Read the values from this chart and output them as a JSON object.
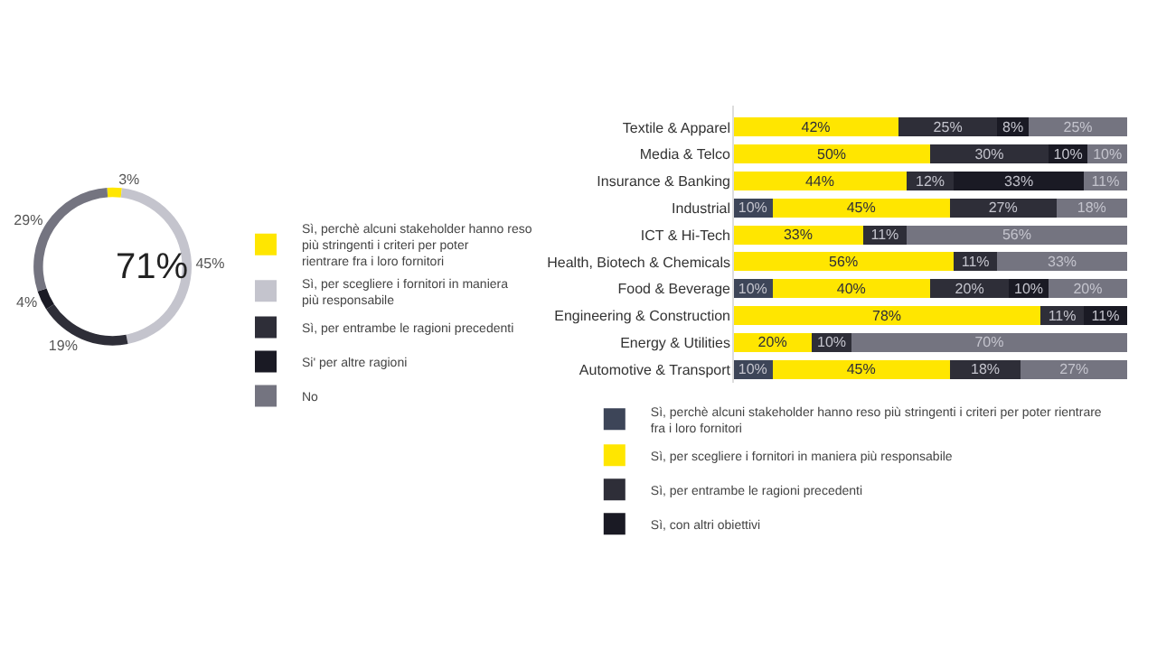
{
  "chart_data": [
    {
      "type": "donut",
      "categories": [
        "Sì, perchè alcuni stakeholder hanno reso più stringenti i criteri per poter rientrare fra i loro fornitori",
        "Sì, per scegliere i fornitori in maniera più responsabile",
        "Sì, per entrambe le ragioni precedenti",
        "Si' per altre ragioni",
        "No"
      ],
      "values": [
        3,
        45,
        19,
        4,
        29
      ],
      "value_labels": [
        "3%",
        "45%",
        "19%",
        "4%",
        "29%"
      ],
      "colors": [
        "#ffe600",
        "#c4c4cd",
        "#2e2e38",
        "#1a1a24",
        "#747480"
      ],
      "annotations": [
        "71%"
      ],
      "legend": "right"
    },
    {
      "type": "bar",
      "orientation": "horizontal",
      "stacked": true,
      "categories": [
        "Textile & Apparel",
        "Media & Telco",
        "Insurance & Banking",
        "Industrial",
        "ICT & Hi-Tech",
        "Health, Biotech & Chemicals",
        "Food & Beverage",
        "Engineering & Construction",
        "Energy & Utilities",
        "Automotive & Transport"
      ],
      "legend": "bottom",
      "tick_labels": "y",
      "series": [
        {
          "name": "Sì, perchè alcuni stakeholder hanno reso più stringenti i criteri per poter rientrare fra i loro fornitori",
          "color": "#3d4558",
          "values": [
            null,
            null,
            null,
            10,
            null,
            null,
            10,
            null,
            null,
            10
          ],
          "value_labels": [
            null,
            null,
            null,
            "10%",
            null,
            null,
            "10%",
            null,
            null,
            "10%"
          ]
        },
        {
          "name": "Sì, per scegliere i fornitori in maniera più responsabile",
          "color": "#ffe600",
          "values": [
            42,
            50,
            44,
            45,
            33,
            56,
            40,
            78,
            20,
            45
          ],
          "value_labels": [
            "42%",
            "50%",
            "44%",
            "45%",
            "33%",
            "56%",
            "40%",
            "78%",
            "20%",
            "45%"
          ]
        },
        {
          "name": "Sì, per entrambe le ragioni precedenti",
          "color": "#2e2e38",
          "values": [
            25,
            30,
            12,
            27,
            11,
            11,
            20,
            11,
            10,
            18
          ],
          "value_labels": [
            "25%",
            "30%",
            "12%",
            "27%",
            "11%",
            "11%",
            "20%",
            "11%",
            "10%",
            "18%"
          ]
        },
        {
          "name": "Sì, con altri obiettivi",
          "color": "#1a1a24",
          "values": [
            8,
            10,
            33,
            null,
            null,
            null,
            10,
            11,
            null,
            null
          ],
          "value_labels": [
            "8%",
            "10%",
            "33%",
            null,
            null,
            null,
            "10%",
            "11%",
            null,
            null
          ]
        },
        {
          "color": "#747480",
          "values": [
            25,
            10,
            11,
            18,
            56,
            33,
            20,
            null,
            70,
            27
          ],
          "value_labels": [
            "25%",
            "10%",
            "11%",
            "18%",
            "56%",
            "33%",
            "20%",
            null,
            "70%",
            "27%"
          ]
        }
      ]
    }
  ]
}
